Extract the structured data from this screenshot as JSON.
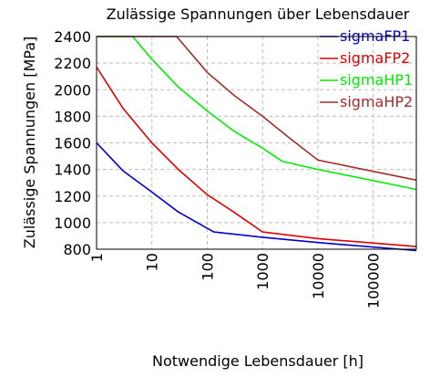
{
  "chart_data": {
    "type": "line",
    "title": "Zulässige Spannungen über Lebensdauer",
    "xlabel": "Notwendige Lebensdauer [h]",
    "ylabel": "Zulässige Spannungen [MPa]",
    "x_scale": "log",
    "xlim": [
      1,
      600000
    ],
    "ylim": [
      800,
      2400
    ],
    "xticks": [
      1,
      10,
      100,
      1000,
      10000,
      100000
    ],
    "xtick_labels": [
      "1",
      "10",
      "100",
      "1000",
      "10000",
      "100000"
    ],
    "yticks": [
      800,
      1000,
      1200,
      1400,
      1600,
      1800,
      2000,
      2200,
      2400
    ],
    "ytick_labels": [
      "800",
      "1000",
      "1200",
      "1400",
      "1600",
      "1800",
      "2000",
      "2200",
      "2400"
    ],
    "grid": true,
    "legend_position": "top-right",
    "series": [
      {
        "name": "sigmaFP1",
        "color": "#0000cc",
        "x": [
          1,
          3,
          10,
          30,
          131,
          1000,
          10000,
          600000
        ],
        "y": [
          1600,
          1390,
          1230,
          1080,
          930,
          890,
          850,
          790
        ]
      },
      {
        "name": "sigmaFP2",
        "color": "#dd0000",
        "x": [
          1,
          3,
          10,
          30,
          100,
          300,
          1000,
          10000,
          600000
        ],
        "y": [
          2170,
          1860,
          1600,
          1400,
          1210,
          1080,
          930,
          880,
          820
        ]
      },
      {
        "name": "sigmaHP1",
        "color": "#00ee00",
        "x": [
          1,
          4.5,
          10,
          30,
          100,
          300,
          1000,
          2300,
          10000,
          600000
        ],
        "y": [
          2400,
          2400,
          2230,
          2020,
          1840,
          1690,
          1560,
          1460,
          1400,
          1250
        ]
      },
      {
        "name": "sigmaHP2",
        "color": "#a52a2a",
        "x": [
          1,
          28,
          100,
          300,
          1000,
          3000,
          10000,
          600000
        ],
        "y": [
          2400,
          2400,
          2130,
          1960,
          1800,
          1640,
          1470,
          1320
        ]
      }
    ]
  }
}
